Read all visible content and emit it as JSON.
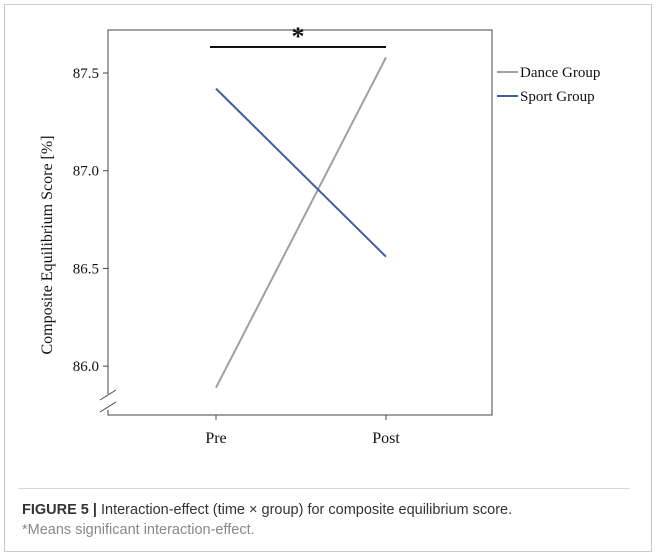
{
  "chart_data": {
    "type": "line",
    "categories": [
      "Pre",
      "Post"
    ],
    "series": [
      {
        "name": "Dance Group",
        "values": [
          85.89,
          87.58
        ],
        "color": "#a0a0a0"
      },
      {
        "name": "Sport Group",
        "values": [
          87.42,
          86.56
        ],
        "color": "#3d5ea6"
      }
    ],
    "ylabel": "Composite Equilibrium Score [%]",
    "xlabel": "",
    "yticks": [
      86.0,
      86.5,
      87.0,
      87.5
    ],
    "ylim": [
      85.75,
      87.72
    ],
    "axis_break": true,
    "significance": {
      "marker": "*",
      "between": [
        "Pre",
        "Post"
      ]
    },
    "legend_position": "right"
  },
  "caption": {
    "label": "FIGURE 5 |",
    "text": " Interaction-effect (time × group) for composite equilibrium score.",
    "note": "*Means significant interaction-effect."
  }
}
